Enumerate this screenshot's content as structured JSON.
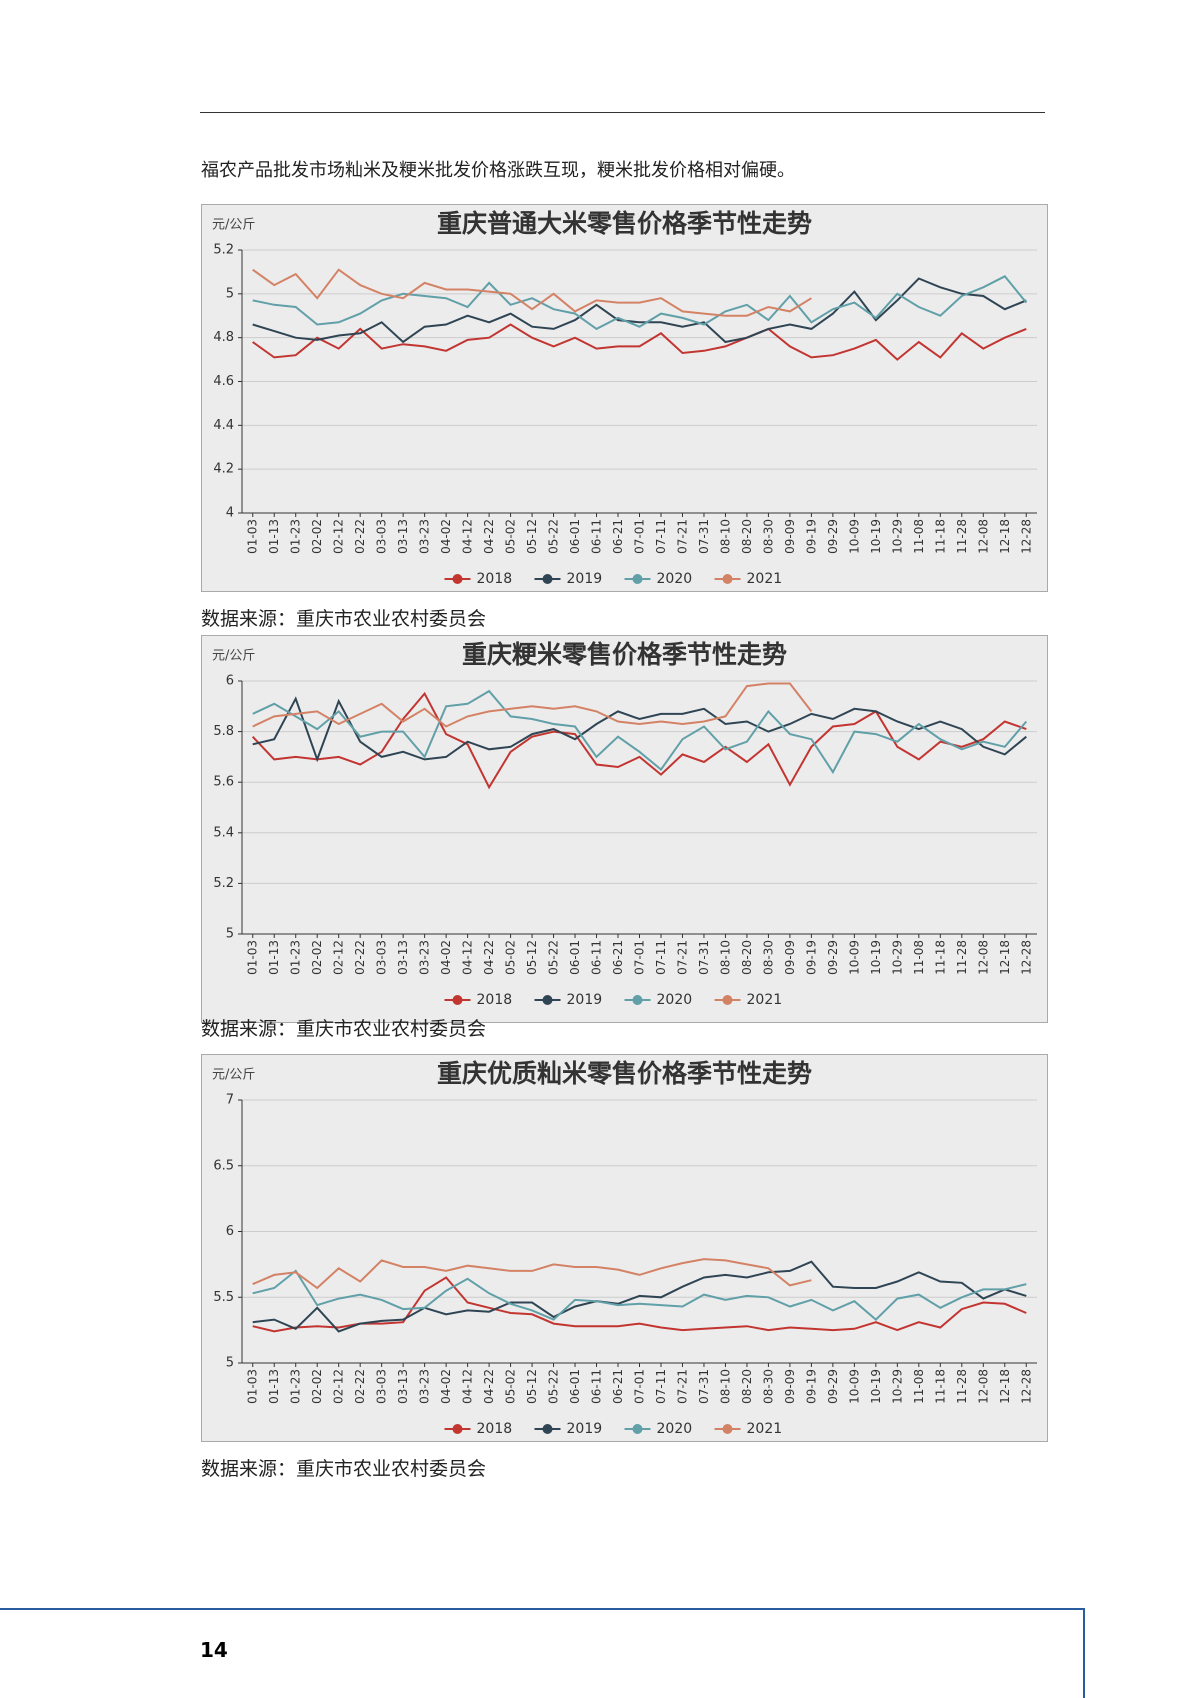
{
  "intro": "福农产品批发市场籼米及粳米批发价格涨跌互现，粳米批发价格相对偏硬。",
  "chart_data": [
    {
      "type": "line",
      "title": "重庆普通大米零售价格季节性走势",
      "y_label": "元/公斤",
      "categories": [
        "01-03",
        "01-13",
        "01-23",
        "02-02",
        "02-12",
        "02-22",
        "03-03",
        "03-13",
        "03-23",
        "04-02",
        "04-12",
        "04-22",
        "05-02",
        "05-12",
        "05-22",
        "06-01",
        "06-11",
        "06-21",
        "07-01",
        "07-11",
        "07-21",
        "07-31",
        "08-10",
        "08-20",
        "08-30",
        "09-09",
        "09-19",
        "09-29",
        "10-09",
        "10-19",
        "10-29",
        "11-08",
        "11-18",
        "11-28",
        "12-08",
        "12-18",
        "12-28"
      ],
      "ylim": [
        4,
        5.2
      ],
      "yticks": [
        4,
        4.2,
        4.4,
        4.6,
        4.8,
        5,
        5.2
      ],
      "grid": true,
      "series": [
        {
          "name": "2018",
          "color": "#c23531",
          "values": [
            4.78,
            4.71,
            4.72,
            4.8,
            4.75,
            4.84,
            4.75,
            4.77,
            4.76,
            4.74,
            4.79,
            4.8,
            4.86,
            4.8,
            4.76,
            4.8,
            4.75,
            4.76,
            4.76,
            4.82,
            4.73,
            4.74,
            4.76,
            4.8,
            4.84,
            4.76,
            4.71,
            4.72,
            4.75,
            4.79,
            4.7,
            4.78,
            4.71,
            4.82,
            4.75,
            4.8,
            4.84
          ]
        },
        {
          "name": "2019",
          "color": "#2f4554",
          "values": [
            4.86,
            4.83,
            4.8,
            4.79,
            4.81,
            4.82,
            4.87,
            4.78,
            4.85,
            4.86,
            4.9,
            4.87,
            4.91,
            4.85,
            4.84,
            4.88,
            4.95,
            4.88,
            4.87,
            4.87,
            4.85,
            4.87,
            4.78,
            4.8,
            4.84,
            4.86,
            4.84,
            4.91,
            5.01,
            4.88,
            4.97,
            5.07,
            5.03,
            5.0,
            4.99,
            4.93,
            4.97
          ]
        },
        {
          "name": "2020",
          "color": "#61a0a8",
          "values": [
            4.97,
            4.95,
            4.94,
            4.86,
            4.87,
            4.91,
            4.97,
            5.0,
            4.99,
            4.98,
            4.94,
            5.05,
            4.95,
            4.98,
            4.93,
            4.91,
            4.84,
            4.89,
            4.85,
            4.91,
            4.89,
            4.86,
            4.92,
            4.95,
            4.88,
            4.99,
            4.87,
            4.93,
            4.96,
            4.89,
            5.0,
            4.94,
            4.9,
            4.99,
            5.03,
            5.08,
            4.96
          ]
        },
        {
          "name": "2021",
          "color": "#d48265",
          "values": [
            5.11,
            5.04,
            5.09,
            4.98,
            5.11,
            5.04,
            5.0,
            4.98,
            5.05,
            5.02,
            5.02,
            5.01,
            5.0,
            4.93,
            5.0,
            4.92,
            4.97,
            4.96,
            4.96,
            4.98,
            4.92,
            4.91,
            4.9,
            4.9,
            4.94,
            4.92,
            4.98,
            null,
            null,
            null,
            null,
            null,
            null,
            null,
            null,
            null,
            null
          ]
        }
      ]
    },
    {
      "type": "line",
      "title": "重庆粳米零售价格季节性走势",
      "y_label": "元/公斤",
      "categories": [
        "01-03",
        "01-13",
        "01-23",
        "02-02",
        "02-12",
        "02-22",
        "03-03",
        "03-13",
        "03-23",
        "04-02",
        "04-12",
        "04-22",
        "05-02",
        "05-12",
        "05-22",
        "06-01",
        "06-11",
        "06-21",
        "07-01",
        "07-11",
        "07-21",
        "07-31",
        "08-10",
        "08-20",
        "08-30",
        "09-09",
        "09-19",
        "09-29",
        "10-09",
        "10-19",
        "10-29",
        "11-08",
        "11-18",
        "11-28",
        "12-08",
        "12-18",
        "12-28"
      ],
      "ylim": [
        5,
        6
      ],
      "yticks": [
        5,
        5.2,
        5.4,
        5.6,
        5.8,
        6
      ],
      "grid": true,
      "series": [
        {
          "name": "2018",
          "color": "#c23531",
          "values": [
            5.78,
            5.69,
            5.7,
            5.69,
            5.7,
            5.67,
            5.72,
            5.85,
            5.95,
            5.79,
            5.75,
            5.58,
            5.72,
            5.78,
            5.8,
            5.79,
            5.67,
            5.66,
            5.7,
            5.63,
            5.71,
            5.68,
            5.74,
            5.68,
            5.75,
            5.59,
            5.74,
            5.82,
            5.83,
            5.88,
            5.74,
            5.69,
            5.76,
            5.74,
            5.77,
            5.84,
            5.81
          ]
        },
        {
          "name": "2019",
          "color": "#2f4554",
          "values": [
            5.75,
            5.77,
            5.93,
            5.69,
            5.92,
            5.76,
            5.7,
            5.72,
            5.69,
            5.7,
            5.76,
            5.73,
            5.74,
            5.79,
            5.81,
            5.77,
            5.83,
            5.88,
            5.85,
            5.87,
            5.87,
            5.89,
            5.83,
            5.84,
            5.8,
            5.83,
            5.87,
            5.85,
            5.89,
            5.88,
            5.84,
            5.81,
            5.84,
            5.81,
            5.74,
            5.71,
            5.78
          ]
        },
        {
          "name": "2020",
          "color": "#61a0a8",
          "values": [
            5.87,
            5.91,
            5.86,
            5.81,
            5.88,
            5.78,
            5.8,
            5.8,
            5.7,
            5.9,
            5.91,
            5.96,
            5.86,
            5.85,
            5.83,
            5.82,
            5.7,
            5.78,
            5.72,
            5.65,
            5.77,
            5.82,
            5.73,
            5.76,
            5.88,
            5.79,
            5.77,
            5.64,
            5.8,
            5.79,
            5.76,
            5.83,
            5.77,
            5.73,
            5.76,
            5.74,
            5.84
          ]
        },
        {
          "name": "2021",
          "color": "#d48265",
          "values": [
            5.82,
            5.86,
            5.87,
            5.88,
            5.83,
            5.87,
            5.91,
            5.84,
            5.89,
            5.82,
            5.86,
            5.88,
            5.89,
            5.9,
            5.89,
            5.9,
            5.88,
            5.84,
            5.83,
            5.84,
            5.83,
            5.84,
            5.86,
            5.98,
            5.99,
            5.99,
            5.88,
            null,
            null,
            null,
            null,
            null,
            null,
            null,
            null,
            null,
            null
          ]
        }
      ]
    },
    {
      "type": "line",
      "title": "重庆优质籼米零售价格季节性走势",
      "y_label": "元/公斤",
      "categories": [
        "01-03",
        "01-13",
        "01-23",
        "02-02",
        "02-12",
        "02-22",
        "03-03",
        "03-13",
        "03-23",
        "04-02",
        "04-12",
        "04-22",
        "05-02",
        "05-12",
        "05-22",
        "06-01",
        "06-11",
        "06-21",
        "07-01",
        "07-11",
        "07-21",
        "07-31",
        "08-10",
        "08-20",
        "08-30",
        "09-09",
        "09-19",
        "09-29",
        "10-09",
        "10-19",
        "10-29",
        "11-08",
        "11-18",
        "11-28",
        "12-08",
        "12-18",
        "12-28"
      ],
      "ylim": [
        5,
        7
      ],
      "yticks": [
        5,
        5.5,
        6,
        6.5,
        7
      ],
      "grid": true,
      "series": [
        {
          "name": "2018",
          "color": "#c23531",
          "values": [
            5.28,
            5.24,
            5.27,
            5.28,
            5.27,
            5.3,
            5.3,
            5.31,
            5.55,
            5.65,
            5.46,
            5.42,
            5.38,
            5.37,
            5.3,
            5.28,
            5.28,
            5.28,
            5.3,
            5.27,
            5.25,
            5.26,
            5.27,
            5.28,
            5.25,
            5.27,
            5.26,
            5.25,
            5.26,
            5.31,
            5.25,
            5.31,
            5.27,
            5.41,
            5.46,
            5.45,
            5.38
          ]
        },
        {
          "name": "2019",
          "color": "#2f4554",
          "values": [
            5.31,
            5.33,
            5.26,
            5.42,
            5.24,
            5.3,
            5.32,
            5.33,
            5.42,
            5.37,
            5.4,
            5.39,
            5.46,
            5.46,
            5.35,
            5.43,
            5.47,
            5.45,
            5.51,
            5.5,
            5.58,
            5.65,
            5.67,
            5.65,
            5.69,
            5.7,
            5.77,
            5.58,
            5.57,
            5.57,
            5.62,
            5.69,
            5.62,
            5.61,
            5.49,
            5.56,
            5.51
          ]
        },
        {
          "name": "2020",
          "color": "#61a0a8",
          "values": [
            5.53,
            5.57,
            5.7,
            5.44,
            5.49,
            5.52,
            5.48,
            5.41,
            5.42,
            5.55,
            5.64,
            5.53,
            5.45,
            5.4,
            5.33,
            5.48,
            5.47,
            5.44,
            5.45,
            5.44,
            5.43,
            5.52,
            5.48,
            5.51,
            5.5,
            5.43,
            5.48,
            5.4,
            5.47,
            5.33,
            5.49,
            5.52,
            5.42,
            5.5,
            5.56,
            5.56,
            5.6
          ]
        },
        {
          "name": "2021",
          "color": "#d48265",
          "values": [
            5.6,
            5.67,
            5.69,
            5.57,
            5.72,
            5.62,
            5.78,
            5.73,
            5.73,
            5.7,
            5.74,
            5.72,
            5.7,
            5.7,
            5.75,
            5.73,
            5.73,
            5.71,
            5.67,
            5.72,
            5.76,
            5.79,
            5.78,
            5.75,
            5.72,
            5.59,
            5.63,
            null,
            null,
            null,
            null,
            null,
            null,
            null,
            null,
            null,
            null
          ]
        }
      ]
    }
  ],
  "sources": [
    "数据来源：重庆市农业农村委员会",
    "数据来源：重庆市农业农村委员会",
    "数据来源：重庆市农业农村委员会"
  ],
  "page_number": "14"
}
